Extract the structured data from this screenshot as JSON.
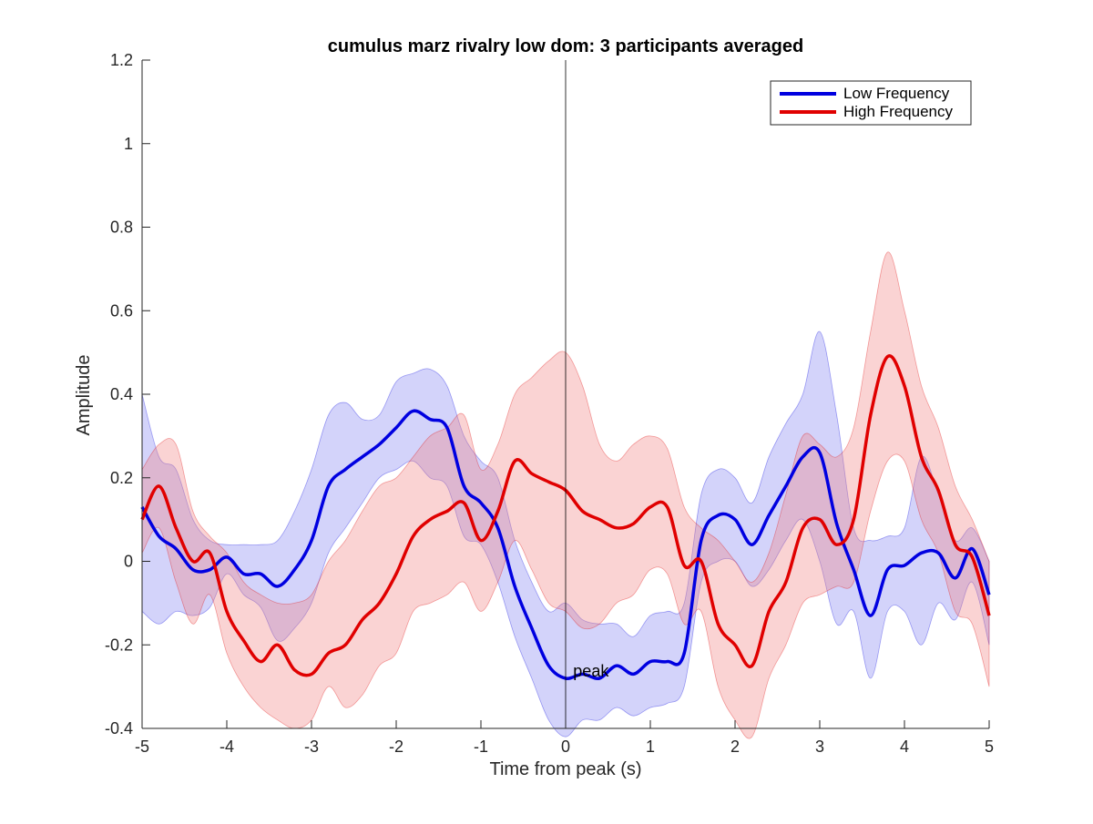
{
  "chart_data": {
    "type": "line",
    "title": "cumulus marz rivalry low dom: 3 participants averaged",
    "xlabel": "Time from peak (s)",
    "ylabel": "Amplitude",
    "xlim": [
      -5,
      5
    ],
    "ylim": [
      -0.4,
      1.2
    ],
    "xticks": [
      -5,
      -4,
      -3,
      -2,
      -1,
      0,
      1,
      2,
      3,
      4,
      5
    ],
    "xtick_labels": [
      "-5",
      "-4",
      "-3",
      "-2",
      "-1",
      "0",
      "1",
      "2",
      "3",
      "4",
      "5"
    ],
    "yticks": [
      -0.4,
      -0.2,
      0,
      0.2,
      0.4,
      0.6,
      0.8,
      1,
      1.2
    ],
    "ytick_labels": [
      "-0.4",
      "-0.2",
      "0",
      "0.2",
      "0.4",
      "0.6",
      "0.8",
      "1",
      "1.2"
    ],
    "grid": false,
    "legend_position": "top-right",
    "vline": {
      "x": 0
    },
    "annotation": {
      "text": "peak",
      "x": 0.1,
      "y": -0.25
    },
    "x": [
      -5,
      -4.8,
      -4.6,
      -4.4,
      -4.2,
      -4,
      -3.8,
      -3.6,
      -3.4,
      -3.2,
      -3,
      -2.8,
      -2.6,
      -2.4,
      -2.2,
      -2,
      -1.8,
      -1.6,
      -1.4,
      -1.2,
      -1,
      -0.8,
      -0.6,
      -0.4,
      -0.2,
      0,
      0.2,
      0.4,
      0.6,
      0.8,
      1,
      1.2,
      1.4,
      1.6,
      1.8,
      2,
      2.2,
      2.4,
      2.6,
      2.8,
      3,
      3.2,
      3.4,
      3.6,
      3.8,
      4,
      4.2,
      4.4,
      4.6,
      4.8,
      5
    ],
    "series": [
      {
        "name": "Low Frequency",
        "color": "#0000e0",
        "band_color": "#8080f0",
        "values": [
          0.13,
          0.06,
          0.03,
          -0.02,
          -0.02,
          0.01,
          -0.03,
          -0.03,
          -0.06,
          -0.02,
          0.05,
          0.18,
          0.22,
          0.25,
          0.28,
          0.32,
          0.36,
          0.34,
          0.32,
          0.18,
          0.14,
          0.08,
          -0.06,
          -0.16,
          -0.25,
          -0.28,
          -0.27,
          -0.28,
          -0.25,
          -0.27,
          -0.24,
          -0.24,
          -0.22,
          0.05,
          0.11,
          0.1,
          0.04,
          0.11,
          0.18,
          0.25,
          0.26,
          0.09,
          -0.02,
          -0.13,
          -0.02,
          -0.01,
          0.02,
          0.02,
          -0.04,
          0.03,
          -0.08
        ],
        "upper": [
          0.4,
          0.25,
          0.22,
          0.1,
          0.05,
          0.04,
          0.04,
          0.04,
          0.05,
          0.12,
          0.22,
          0.35,
          0.38,
          0.34,
          0.35,
          0.43,
          0.45,
          0.46,
          0.42,
          0.3,
          0.24,
          0.2,
          0.05,
          -0.05,
          -0.12,
          -0.1,
          -0.14,
          -0.15,
          -0.15,
          -0.18,
          -0.13,
          -0.12,
          -0.1,
          0.16,
          0.22,
          0.2,
          0.14,
          0.25,
          0.33,
          0.4,
          0.55,
          0.35,
          0.08,
          0.05,
          0.06,
          0.08,
          0.25,
          0.16,
          0.05,
          0.08,
          0.0
        ],
        "lower": [
          -0.12,
          -0.15,
          -0.12,
          -0.13,
          -0.11,
          -0.03,
          -0.08,
          -0.11,
          -0.19,
          -0.16,
          -0.1,
          0.02,
          0.08,
          0.14,
          0.2,
          0.22,
          0.24,
          0.2,
          0.18,
          0.06,
          0.04,
          -0.05,
          -0.18,
          -0.28,
          -0.38,
          -0.42,
          -0.38,
          -0.38,
          -0.35,
          -0.37,
          -0.35,
          -0.34,
          -0.3,
          -0.05,
          0.0,
          0.0,
          -0.06,
          -0.02,
          0.05,
          0.1,
          0.0,
          -0.15,
          -0.12,
          -0.28,
          -0.12,
          -0.12,
          -0.2,
          -0.1,
          -0.14,
          -0.05,
          -0.2
        ]
      },
      {
        "name": "High Frequency",
        "color": "#e00000",
        "band_color": "#f08080",
        "values": [
          0.1,
          0.18,
          0.08,
          0.0,
          0.02,
          -0.12,
          -0.19,
          -0.24,
          -0.2,
          -0.26,
          -0.27,
          -0.22,
          -0.2,
          -0.14,
          -0.1,
          -0.03,
          0.06,
          0.1,
          0.12,
          0.14,
          0.05,
          0.12,
          0.24,
          0.21,
          0.19,
          0.17,
          0.12,
          0.1,
          0.08,
          0.09,
          0.13,
          0.13,
          -0.01,
          0.0,
          -0.15,
          -0.2,
          -0.25,
          -0.12,
          -0.05,
          0.08,
          0.1,
          0.04,
          0.1,
          0.35,
          0.49,
          0.42,
          0.25,
          0.17,
          0.04,
          0.01,
          -0.13
        ],
        "upper": [
          0.22,
          0.28,
          0.28,
          0.12,
          0.06,
          0.02,
          -0.05,
          -0.08,
          -0.1,
          -0.1,
          -0.08,
          0.0,
          0.05,
          0.12,
          0.18,
          0.2,
          0.25,
          0.3,
          0.32,
          0.35,
          0.22,
          0.28,
          0.4,
          0.44,
          0.48,
          0.5,
          0.42,
          0.28,
          0.24,
          0.28,
          0.3,
          0.27,
          0.13,
          0.08,
          0.05,
          0.0,
          -0.05,
          0.02,
          0.16,
          0.3,
          0.28,
          0.25,
          0.32,
          0.55,
          0.74,
          0.6,
          0.42,
          0.32,
          0.18,
          0.1,
          0.0
        ],
        "lower": [
          0.02,
          0.08,
          -0.05,
          -0.15,
          -0.08,
          -0.22,
          -0.3,
          -0.35,
          -0.38,
          -0.4,
          -0.38,
          -0.3,
          -0.35,
          -0.32,
          -0.25,
          -0.22,
          -0.12,
          -0.1,
          -0.08,
          -0.05,
          -0.12,
          -0.05,
          0.05,
          -0.02,
          -0.1,
          -0.12,
          -0.16,
          -0.15,
          -0.1,
          -0.08,
          -0.02,
          -0.03,
          -0.15,
          -0.12,
          -0.3,
          -0.38,
          -0.42,
          -0.28,
          -0.2,
          -0.1,
          -0.08,
          -0.06,
          -0.05,
          0.12,
          0.24,
          0.24,
          0.1,
          0.02,
          -0.12,
          -0.15,
          -0.3
        ]
      }
    ]
  }
}
